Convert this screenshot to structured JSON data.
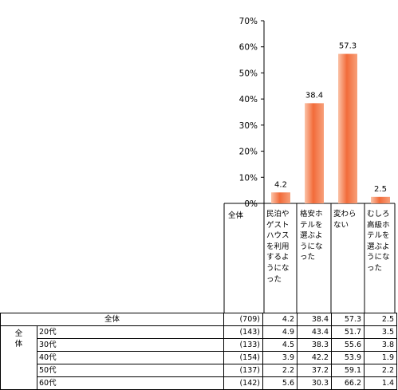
{
  "chart_data": {
    "type": "bar",
    "categories": [
      "民泊やゲストハウスを利用するようになった",
      "格安ホテルを選ぶようになった",
      "変わらない",
      "むしろ高級ホテルを選ぶようになった"
    ],
    "values": [
      4.2,
      38.4,
      57.3,
      2.5
    ],
    "value_labels": [
      "4.2",
      "38.4",
      "57.3",
      "2.5"
    ],
    "yticks": [
      "70%",
      "60%",
      "50%",
      "40%",
      "30%",
      "20%",
      "10%",
      "0%"
    ],
    "ylim": [
      0,
      70
    ],
    "grid": false,
    "bar_color": "#f26b3a"
  },
  "table": {
    "total_header": "全体",
    "total_row": {
      "label": "全体",
      "n": "(709)",
      "values": [
        "4.2",
        "38.4",
        "57.3",
        "2.5"
      ]
    },
    "group_label": "全体",
    "rows": [
      {
        "label": "20代",
        "n": "(143)",
        "values": [
          "4.9",
          "43.4",
          "51.7",
          "3.5"
        ]
      },
      {
        "label": "30代",
        "n": "(133)",
        "values": [
          "4.5",
          "38.3",
          "55.6",
          "3.8"
        ]
      },
      {
        "label": "40代",
        "n": "(154)",
        "values": [
          "3.9",
          "42.2",
          "53.9",
          "1.9"
        ]
      },
      {
        "label": "50代",
        "n": "(137)",
        "values": [
          "2.2",
          "37.2",
          "59.1",
          "2.2"
        ]
      },
      {
        "label": "60代",
        "n": "(142)",
        "values": [
          "5.6",
          "30.3",
          "66.2",
          "1.4"
        ]
      }
    ]
  }
}
